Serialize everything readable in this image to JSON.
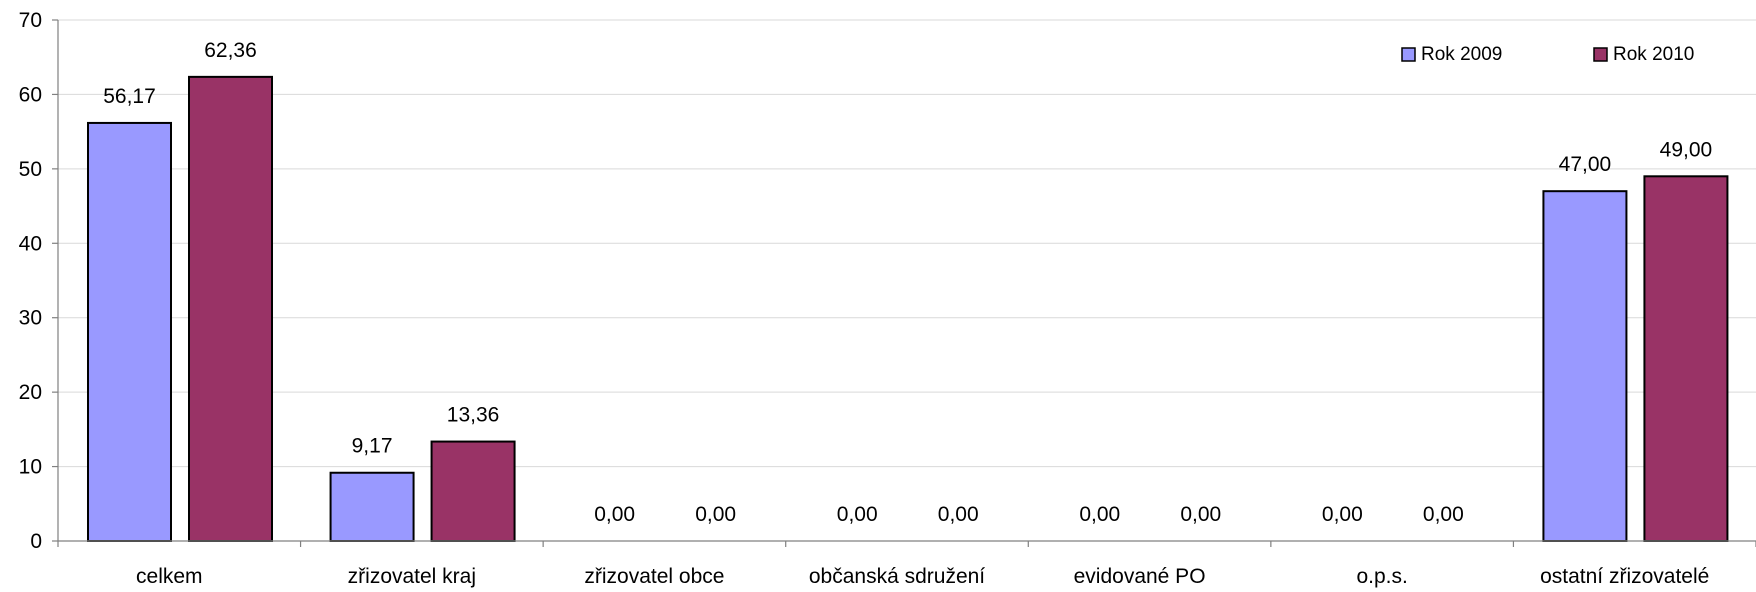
{
  "chart_data": {
    "type": "bar",
    "title": "",
    "xlabel": "",
    "ylabel": "",
    "ylim": [
      0,
      70
    ],
    "yticks": [
      0,
      10,
      20,
      30,
      40,
      50,
      60,
      70
    ],
    "grid": true,
    "legend_position": "top-right",
    "categories": [
      "celkem",
      "zřizovatel kraj",
      "zřizovatel obce",
      "občanská sdružení",
      "evidované PO",
      "o.p.s.",
      "ostatní zřizovatelé"
    ],
    "series": [
      {
        "name": "Rok 2009",
        "color": "#9999ff",
        "values": [
          56.17,
          9.17,
          0.0,
          0.0,
          0.0,
          0.0,
          47.0
        ],
        "labels": [
          "56,17",
          "9,17",
          "0,00",
          "0,00",
          "0,00",
          "0,00",
          "47,00"
        ]
      },
      {
        "name": "Rok 2010",
        "color": "#993366",
        "values": [
          62.36,
          13.36,
          0.0,
          0.0,
          0.0,
          0.0,
          49.0
        ],
        "labels": [
          "62,36",
          "13,36",
          "0,00",
          "0,00",
          "0,00",
          "0,00",
          "49,00"
        ]
      }
    ]
  }
}
